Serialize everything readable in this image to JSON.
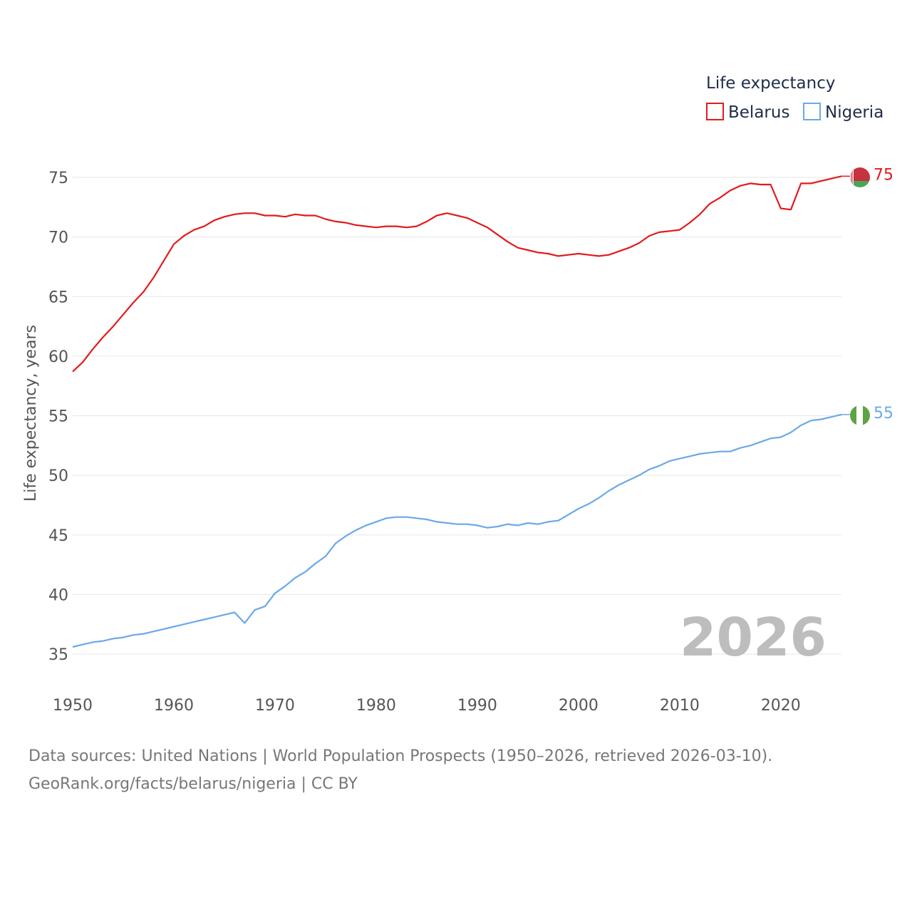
{
  "chart_data": {
    "type": "line",
    "title": "",
    "xlabel": "",
    "ylabel": "Life expectancy, years",
    "xlim": [
      1950,
      2026
    ],
    "ylim": [
      35,
      75
    ],
    "x_ticks": [
      1950,
      1960,
      1970,
      1980,
      1990,
      2000,
      2010,
      2020
    ],
    "y_ticks": [
      35,
      40,
      45,
      50,
      55,
      60,
      65,
      70,
      75
    ],
    "grid": true,
    "watermark": "2026",
    "legend": {
      "title": "Life expectancy",
      "placement": "top-right",
      "entries": [
        "Belarus",
        "Nigeria"
      ]
    },
    "x": [
      1950,
      1951,
      1952,
      1953,
      1954,
      1955,
      1956,
      1957,
      1958,
      1959,
      1960,
      1961,
      1962,
      1963,
      1964,
      1965,
      1966,
      1967,
      1968,
      1969,
      1970,
      1971,
      1972,
      1973,
      1974,
      1975,
      1976,
      1977,
      1978,
      1979,
      1980,
      1981,
      1982,
      1983,
      1984,
      1985,
      1986,
      1987,
      1988,
      1989,
      1990,
      1991,
      1992,
      1993,
      1994,
      1995,
      1996,
      1997,
      1998,
      1999,
      2000,
      2001,
      2002,
      2003,
      2004,
      2005,
      2006,
      2007,
      2008,
      2009,
      2010,
      2011,
      2012,
      2013,
      2014,
      2015,
      2016,
      2017,
      2018,
      2019,
      2020,
      2021,
      2022,
      2023,
      2024,
      2025,
      2026
    ],
    "series": [
      {
        "name": "Belarus",
        "color": "#e31a1c",
        "end_label": "75",
        "flag": "belarus-flag",
        "values": [
          58.7,
          59.5,
          60.6,
          61.6,
          62.5,
          63.5,
          64.5,
          65.4,
          66.6,
          68.0,
          69.4,
          70.1,
          70.6,
          70.9,
          71.4,
          71.7,
          71.9,
          72.0,
          72.0,
          71.8,
          71.8,
          71.7,
          71.9,
          71.8,
          71.8,
          71.5,
          71.3,
          71.2,
          71.0,
          70.9,
          70.8,
          70.9,
          70.9,
          70.8,
          70.9,
          71.3,
          71.8,
          72.0,
          71.8,
          71.6,
          71.2,
          70.8,
          70.2,
          69.6,
          69.1,
          68.9,
          68.7,
          68.6,
          68.4,
          68.5,
          68.6,
          68.5,
          68.4,
          68.5,
          68.8,
          69.1,
          69.5,
          70.1,
          70.4,
          70.5,
          70.6,
          71.2,
          71.9,
          72.8,
          73.3,
          73.9,
          74.3,
          74.5,
          74.4,
          74.4,
          72.4,
          72.3,
          74.5,
          74.5,
          74.7,
          74.9,
          75.1
        ]
      },
      {
        "name": "Nigeria",
        "color": "#6aa9e9",
        "end_label": "55",
        "flag": "nigeria-flag",
        "values": [
          35.6,
          35.8,
          36.0,
          36.1,
          36.3,
          36.4,
          36.6,
          36.7,
          36.9,
          37.1,
          37.3,
          37.5,
          37.7,
          37.9,
          38.1,
          38.3,
          38.5,
          37.6,
          38.7,
          39.0,
          40.1,
          40.7,
          41.4,
          41.9,
          42.6,
          43.2,
          44.3,
          44.9,
          45.4,
          45.8,
          46.1,
          46.4,
          46.5,
          46.5,
          46.4,
          46.3,
          46.1,
          46.0,
          45.9,
          45.9,
          45.8,
          45.6,
          45.7,
          45.9,
          45.8,
          46.0,
          45.9,
          46.1,
          46.2,
          46.7,
          47.2,
          47.6,
          48.1,
          48.7,
          49.2,
          49.6,
          50.0,
          50.5,
          50.8,
          51.2,
          51.4,
          51.6,
          51.8,
          51.9,
          52.0,
          52.0,
          52.3,
          52.5,
          52.8,
          53.1,
          53.2,
          53.6,
          54.2,
          54.6,
          54.7,
          54.9,
          55.1
        ]
      }
    ]
  },
  "footer": {
    "sources": "Data sources: United Nations | World Population Prospects (1950–2026, retrieved 2026-03-10).",
    "credit": "GeoRank.org/facts/belarus/nigeria | CC BY"
  }
}
